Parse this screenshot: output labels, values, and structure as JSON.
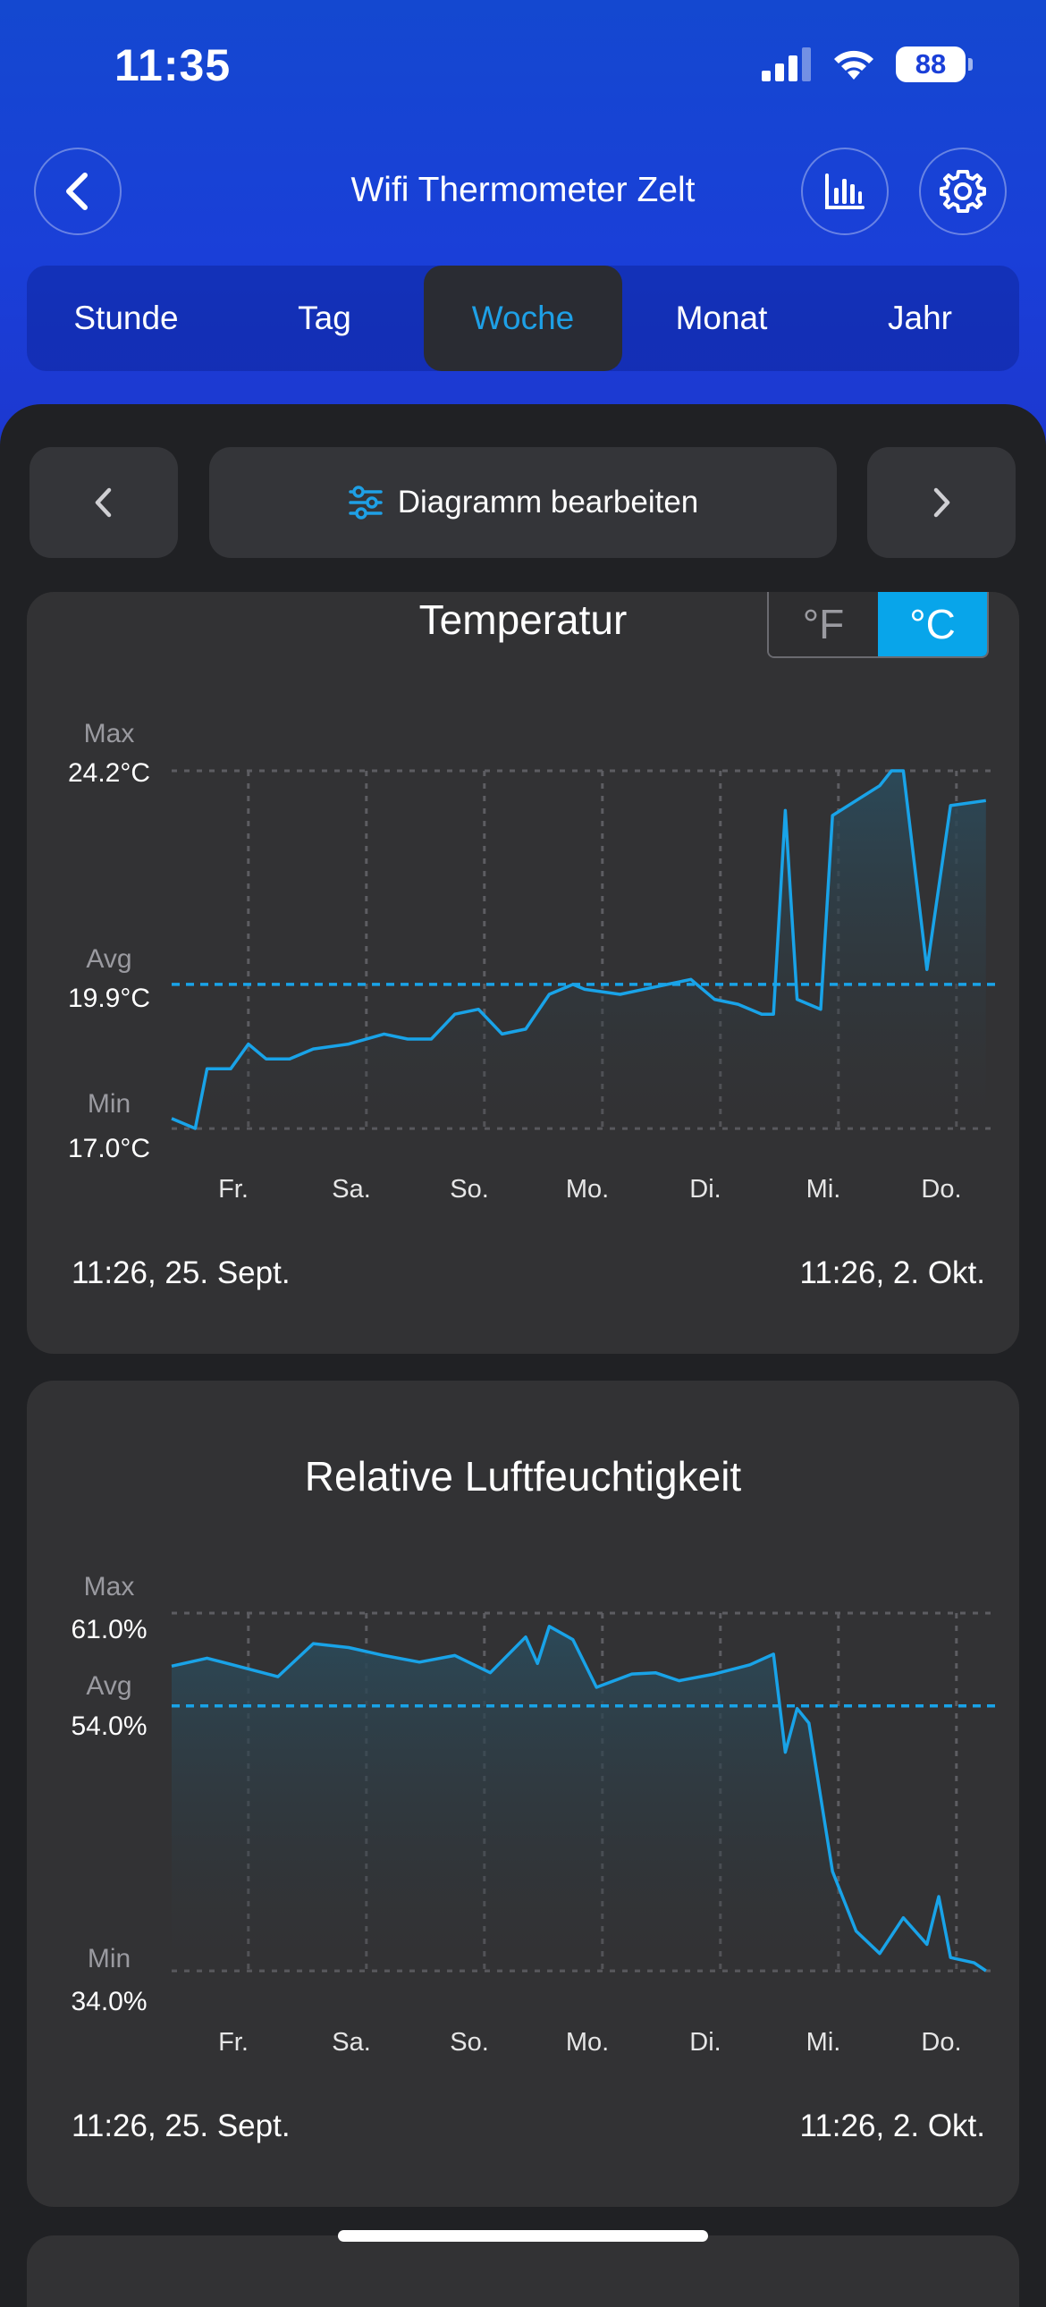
{
  "status": {
    "time": "11:35",
    "battery": "88"
  },
  "header": {
    "title": "Wifi Thermometer Zelt"
  },
  "tabs": [
    {
      "label": "Stunde",
      "active": false
    },
    {
      "label": "Tag",
      "active": false
    },
    {
      "label": "Woche",
      "active": true
    },
    {
      "label": "Monat",
      "active": false
    },
    {
      "label": "Jahr",
      "active": false
    }
  ],
  "toolbar": {
    "edit_label": "Diagramm bearbeiten"
  },
  "colors": {
    "accent": "#1ea0e6",
    "line": "#19a3e8",
    "hero": "#1a3fd8",
    "card": "#323234"
  },
  "temperature": {
    "title": "Temperatur",
    "unit_f": "°F",
    "unit_c": "°C",
    "max_label": "Max",
    "max_value": "24.2°C",
    "avg_label": "Avg",
    "avg_value": "19.9°C",
    "min_label": "Min",
    "min_value": "17.0°C",
    "start": "11:26,  25. Sept.",
    "end": "11:26,  2. Okt."
  },
  "humidity": {
    "title": "Relative Luftfeuchtigkeit",
    "max_label": "Max",
    "max_value": "61.0%",
    "avg_label": "Avg",
    "avg_value": "54.0%",
    "min_label": "Min",
    "min_value": "34.0%",
    "start": "11:26,  25. Sept.",
    "end": "11:26,  2. Okt."
  },
  "days": [
    "Fr.",
    "Sa.",
    "So.",
    "Mo.",
    "Di.",
    "Mi.",
    "Do."
  ],
  "chart_data": [
    {
      "type": "line",
      "title": "Temperatur",
      "unit": "°C",
      "x_labels": [
        "Fr.",
        "Sa.",
        "So.",
        "Mo.",
        "Di.",
        "Mi.",
        "Do."
      ],
      "ylim": [
        17.0,
        24.2
      ],
      "max": 24.2,
      "avg": 19.9,
      "min": 17.0,
      "x": [
        0,
        0.2,
        0.3,
        0.5,
        0.65,
        0.8,
        1.0,
        1.2,
        1.5,
        1.8,
        2.0,
        2.2,
        2.4,
        2.6,
        2.8,
        3.0,
        3.2,
        3.4,
        3.5,
        3.8,
        4.0,
        4.2,
        4.4,
        4.6,
        4.8,
        5.0,
        5.1,
        5.2,
        5.3,
        5.5,
        5.6,
        5.8,
        6.0,
        6.1,
        6.2,
        6.4,
        6.6,
        6.9
      ],
      "values": [
        17.2,
        17.0,
        18.2,
        18.2,
        18.7,
        18.4,
        18.4,
        18.6,
        18.7,
        18.9,
        18.8,
        18.8,
        19.3,
        19.4,
        18.9,
        19.0,
        19.7,
        19.9,
        19.8,
        19.7,
        19.8,
        19.9,
        20.0,
        19.6,
        19.5,
        19.3,
        19.3,
        23.4,
        19.6,
        19.4,
        23.3,
        23.6,
        23.9,
        24.2,
        24.2,
        20.2,
        23.5,
        23.6
      ]
    },
    {
      "type": "line",
      "title": "Relative Luftfeuchtigkeit",
      "unit": "%",
      "x_labels": [
        "Fr.",
        "Sa.",
        "So.",
        "Mo.",
        "Di.",
        "Mi.",
        "Do."
      ],
      "ylim": [
        34.0,
        61.0
      ],
      "max": 61.0,
      "avg": 54.0,
      "min": 34.0,
      "x": [
        0,
        0.3,
        0.6,
        0.9,
        1.2,
        1.5,
        1.8,
        2.1,
        2.4,
        2.7,
        3.0,
        3.1,
        3.2,
        3.4,
        3.6,
        3.9,
        4.1,
        4.3,
        4.6,
        4.9,
        5.1,
        5.2,
        5.3,
        5.4,
        5.6,
        5.8,
        6.0,
        6.2,
        6.4,
        6.5,
        6.6,
        6.8,
        6.9
      ],
      "values": [
        57.0,
        57.6,
        56.9,
        56.2,
        58.7,
        58.4,
        57.8,
        57.3,
        57.8,
        56.5,
        59.2,
        57.2,
        60.0,
        59.0,
        55.4,
        56.4,
        56.5,
        55.9,
        56.4,
        57.1,
        57.9,
        50.5,
        53.8,
        52.7,
        41.5,
        37.0,
        35.3,
        38.0,
        36.0,
        39.6,
        35.0,
        34.6,
        34.0
      ]
    }
  ]
}
